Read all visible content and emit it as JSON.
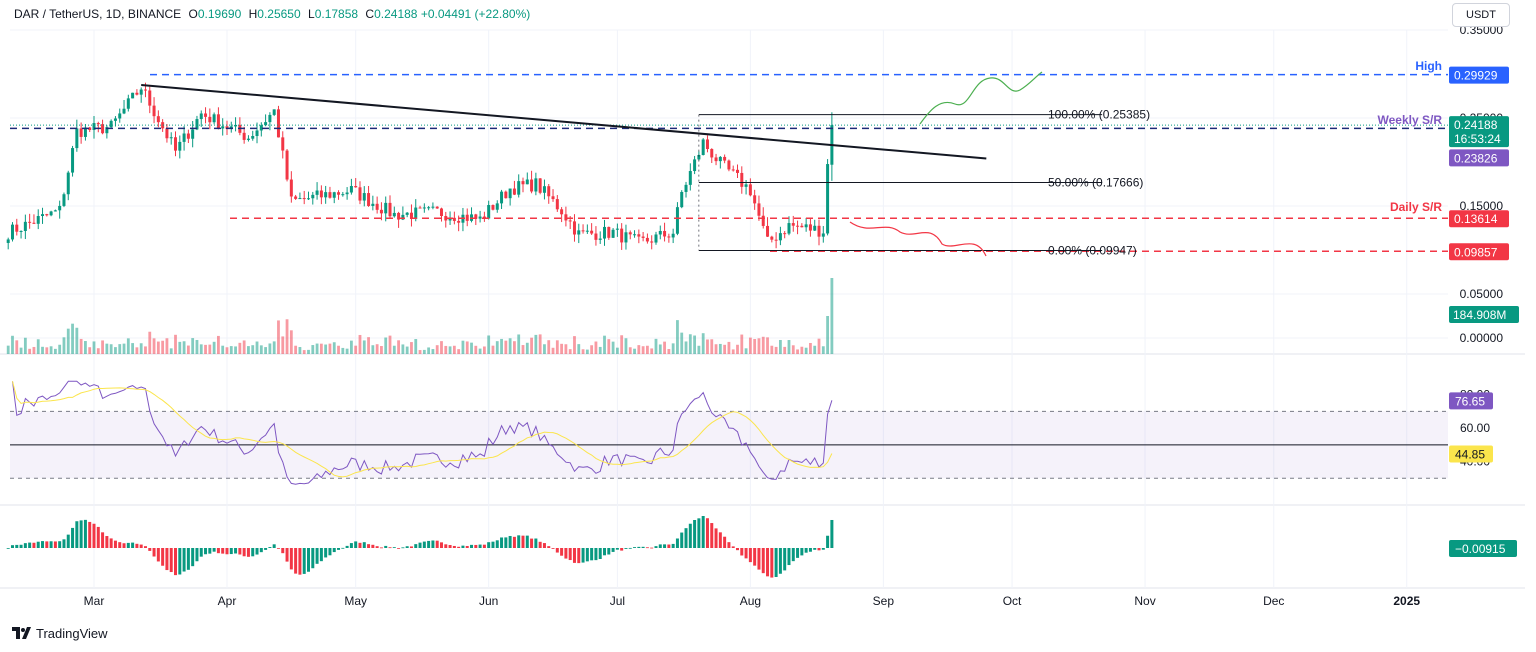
{
  "header": {
    "symbol": "DAR / TetherUS, 1D, BINANCE",
    "open_label": "O",
    "open": "0.19690",
    "high_label": "H",
    "high": "0.25650",
    "low_label": "L",
    "low": "0.17858",
    "close_label": "C",
    "close": "0.24188",
    "change": "+0.04491 (+22.80%)"
  },
  "currency_button": "USDT",
  "brand": "TradingView",
  "colors": {
    "up": "#089981",
    "down": "#f23645",
    "blue_level": "#2962ff",
    "purple": "#7e57c2",
    "rsi_ma": "#fbe54c",
    "grid": "#f0f3fa",
    "sketch_up": "#4caf50",
    "sketch_down": "#f23645"
  },
  "chart_data": [
    {
      "type": "candlestick",
      "pane": "price",
      "ylim": [
        0,
        0.35
      ],
      "y_tick_labels": [
        "0.35000",
        "0.25000",
        "0.15000",
        "0.05000",
        "0.00000"
      ],
      "x_tick_labels": [
        "Mar",
        "Apr",
        "May",
        "Jun",
        "Jul",
        "Aug",
        "Sep",
        "Oct",
        "Nov",
        "Dec",
        "2025"
      ],
      "waypoints": [
        [
          "2024-02-10",
          0.12
        ],
        [
          "2024-02-22",
          0.145
        ],
        [
          "2024-02-26",
          0.235
        ],
        [
          "2024-03-05",
          0.24
        ],
        [
          "2024-03-12",
          0.285
        ],
        [
          "2024-03-20",
          0.212
        ],
        [
          "2024-03-26",
          0.255
        ],
        [
          "2024-04-06",
          0.228
        ],
        [
          "2024-04-12",
          0.258
        ],
        [
          "2024-04-16",
          0.155
        ],
        [
          "2024-04-30",
          0.168
        ],
        [
          "2024-05-10",
          0.14
        ],
        [
          "2024-05-20",
          0.143
        ],
        [
          "2024-05-30",
          0.135
        ],
        [
          "2024-06-06",
          0.17
        ],
        [
          "2024-06-12",
          0.175
        ],
        [
          "2024-06-18",
          0.145
        ],
        [
          "2024-06-22",
          0.118
        ],
        [
          "2024-06-30",
          0.12
        ],
        [
          "2024-07-06",
          0.108
        ],
        [
          "2024-07-14",
          0.12
        ],
        [
          "2024-07-16",
          0.165
        ],
        [
          "2024-07-21",
          0.222
        ],
        [
          "2024-07-25",
          0.198
        ],
        [
          "2024-08-01",
          0.168
        ],
        [
          "2024-08-05",
          0.108
        ],
        [
          "2024-08-10",
          0.128
        ],
        [
          "2024-08-18",
          0.122
        ],
        [
          "2024-08-19",
          0.197
        ],
        [
          "2024-08-20",
          0.24188
        ]
      ],
      "last_close": 0.24188,
      "annotations": {
        "high_label": "High",
        "high_value": "0.29929",
        "weekly_label": "Weekly S/R",
        "weekly_value": "0.23826",
        "daily_label": "Daily S/R",
        "daily_value": "0.13614",
        "support_value": "0.09857",
        "price_tag": "0.24188",
        "countdown": "16:53:24",
        "fib_100": "100.00% (0.25385)",
        "fib_50": "50.00% (0.17666)",
        "fib_0": "0.00% (0.09947)",
        "volume_tag": "184.908M"
      }
    },
    {
      "type": "line",
      "pane": "rsi",
      "ylim": [
        20,
        90
      ],
      "y_tick_labels": [
        "80.00",
        "60.00",
        "40.00"
      ],
      "bands": [
        30,
        50,
        70
      ],
      "rsi_value": "76.65",
      "rsi_ma_value": "44.85"
    },
    {
      "type": "bar",
      "pane": "macd_histogram",
      "value_tag": "−0.00915"
    }
  ]
}
